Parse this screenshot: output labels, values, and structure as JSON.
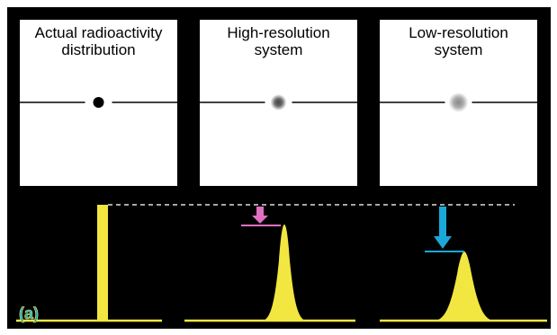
{
  "panels": [
    {
      "title": [
        "Actual radioactivity",
        "distribution"
      ]
    },
    {
      "title": [
        "High-resolution",
        "system"
      ]
    },
    {
      "title": [
        "Low-resolution",
        "system"
      ]
    }
  ],
  "label": "(a)"
}
